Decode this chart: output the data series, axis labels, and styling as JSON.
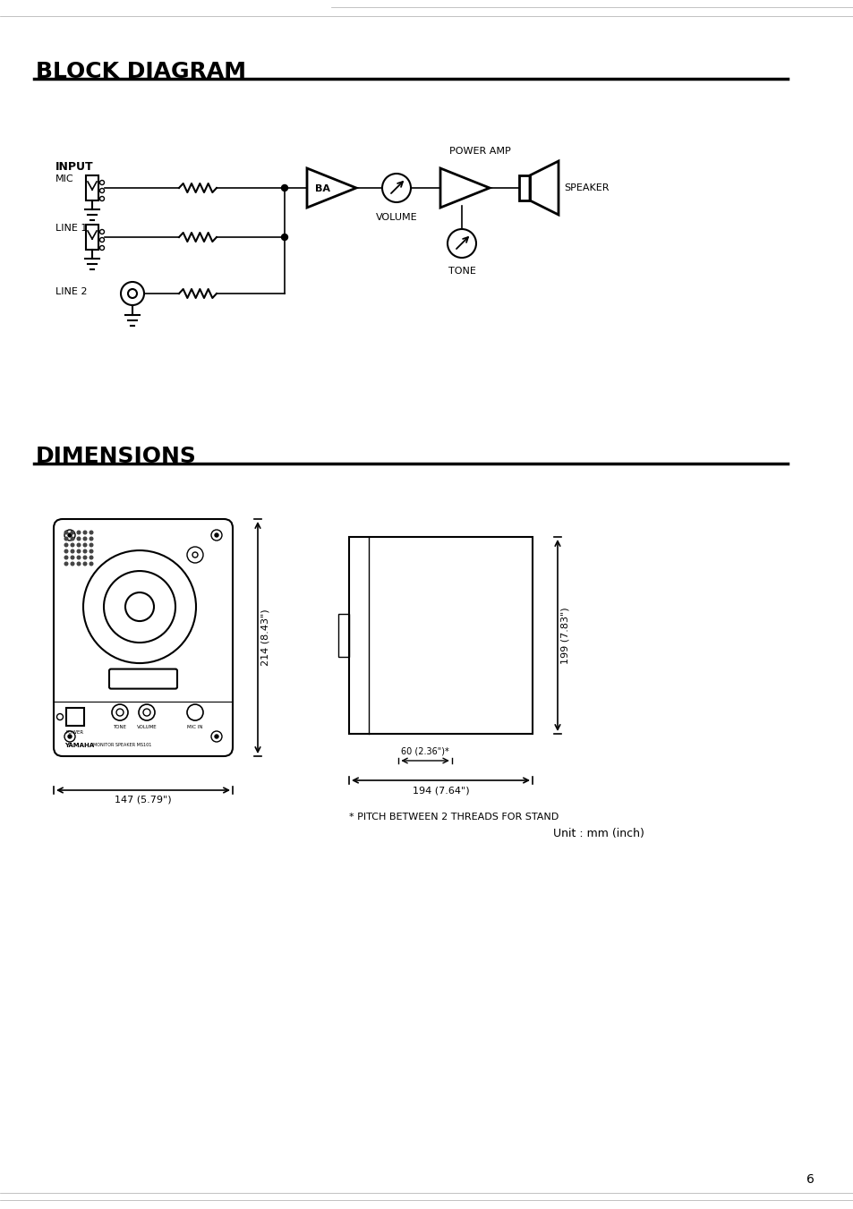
{
  "bg_color": "#ffffff",
  "title1": "BLOCK DIAGRAM",
  "title2": "DIMENSIONS",
  "page_number": "6",
  "dim_width_front": "147 (5.79\")",
  "dim_height_front": "214 (8.43\")",
  "dim_width_side": "194 (7.64\")",
  "dim_height_side": "199 (7.83\")",
  "dim_depth_note": "60 (2.36\")*",
  "footnote": "* PITCH BETWEEN 2 THREADS FOR STAND",
  "unit_note": "Unit : mm (inch)",
  "label_power_amp": "POWER AMP",
  "label_speaker": "SPEAKER",
  "label_volume": "VOLUME",
  "label_tone": "TONE",
  "label_ba": "BA",
  "label_input": "INPUT",
  "label_mic": "MIC",
  "label_line1": "LINE 1",
  "label_line2": "LINE 2"
}
